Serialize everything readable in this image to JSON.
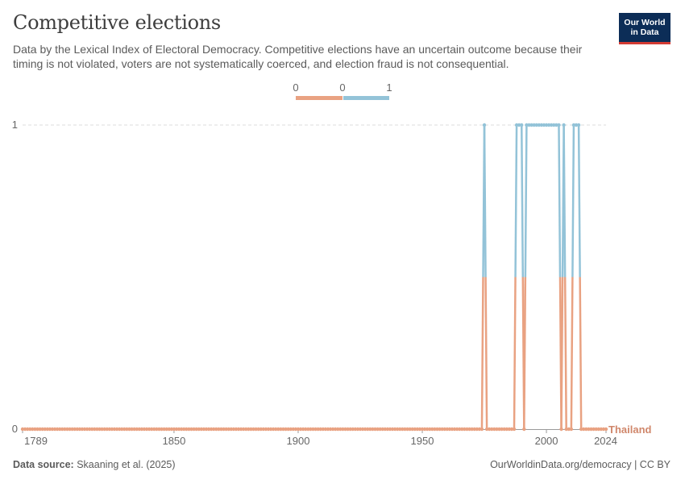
{
  "header": {
    "title": "Competitive elections",
    "subtitle": "Data by the Lexical Index of Electoral Democracy. Competitive elections have an uncertain outcome because their timing is not violated, voters are not systematically coerced, and election fraud is not consequential.",
    "logo_line1": "Our World",
    "logo_line2": "in Data"
  },
  "footer": {
    "source_label": "Data source:",
    "source_text": "Skaaning et al. (2025)",
    "url_text": "OurWorldinData.org/democracy | CC BY"
  },
  "colors": {
    "zero": "#e9a282",
    "one": "#93c3d8",
    "label": "#d0876b",
    "grid": "#dddddd",
    "axis": "#666666"
  },
  "chart_data": {
    "type": "line",
    "title": "Competitive elections",
    "entity": "Thailand",
    "legend": {
      "placement": "top-center",
      "labels": [
        "0",
        "0",
        "1"
      ]
    },
    "xlim": [
      1789,
      2024
    ],
    "ylim": [
      0,
      1
    ],
    "x_ticks": [
      1789,
      1850,
      1900,
      1950,
      2000,
      2024
    ],
    "y_ticks": [
      0,
      1
    ],
    "grid": true,
    "series": [
      {
        "name": "Thailand",
        "segments": [
          {
            "from": 1789,
            "to": 1974,
            "value": 0
          },
          {
            "from": 1975,
            "to": 1975,
            "value": 1
          },
          {
            "from": 1976,
            "to": 1987,
            "value": 0
          },
          {
            "from": 1988,
            "to": 1990,
            "value": 1
          },
          {
            "from": 1991,
            "to": 1991,
            "value": 0
          },
          {
            "from": 1992,
            "to": 2005,
            "value": 1
          },
          {
            "from": 2006,
            "to": 2006,
            "value": 0
          },
          {
            "from": 2007,
            "to": 2007,
            "value": 1
          },
          {
            "from": 2008,
            "to": 2010,
            "value": 0
          },
          {
            "from": 2011,
            "to": 2013,
            "value": 1
          },
          {
            "from": 2014,
            "to": 2024,
            "value": 0
          }
        ]
      }
    ]
  }
}
